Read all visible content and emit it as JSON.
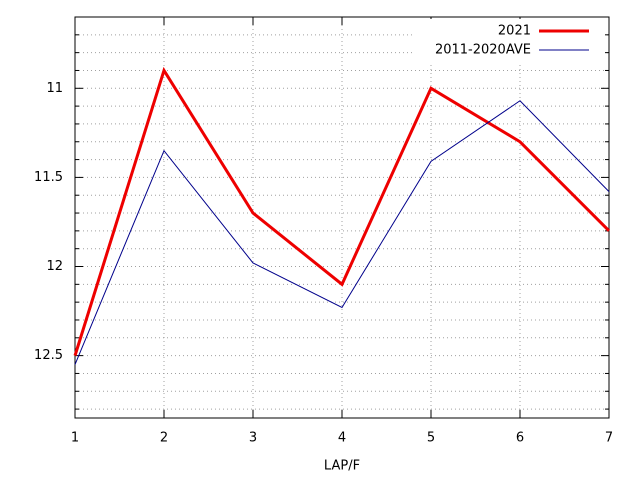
{
  "chart_data": {
    "type": "line",
    "x": [
      1,
      2,
      3,
      4,
      5,
      6,
      7
    ],
    "xlim": [
      1,
      7
    ],
    "xticks": [
      1,
      2,
      3,
      4,
      5,
      6,
      7
    ],
    "ylim": [
      12.85,
      10.6
    ],
    "yticks": [
      11,
      11.5,
      12,
      12.5
    ],
    "y_minor_ticks": [
      10.7,
      10.8,
      10.9,
      11.1,
      11.2,
      11.3,
      11.4,
      11.6,
      11.7,
      11.8,
      11.9,
      12.1,
      12.2,
      12.3,
      12.4,
      12.6,
      12.7,
      12.8
    ],
    "xlabel": "LAP/F",
    "grid": true,
    "legend": "top-right",
    "series": [
      {
        "name": "2021",
        "color": "#ee0000",
        "width": 3,
        "values": [
          12.5,
          10.9,
          11.7,
          12.1,
          11.0,
          11.3,
          11.8
        ]
      },
      {
        "name": "2011-2020AVE",
        "color": "#00008b",
        "width": 1,
        "values": [
          12.55,
          11.35,
          11.98,
          12.23,
          11.41,
          11.07,
          11.58
        ]
      }
    ]
  }
}
